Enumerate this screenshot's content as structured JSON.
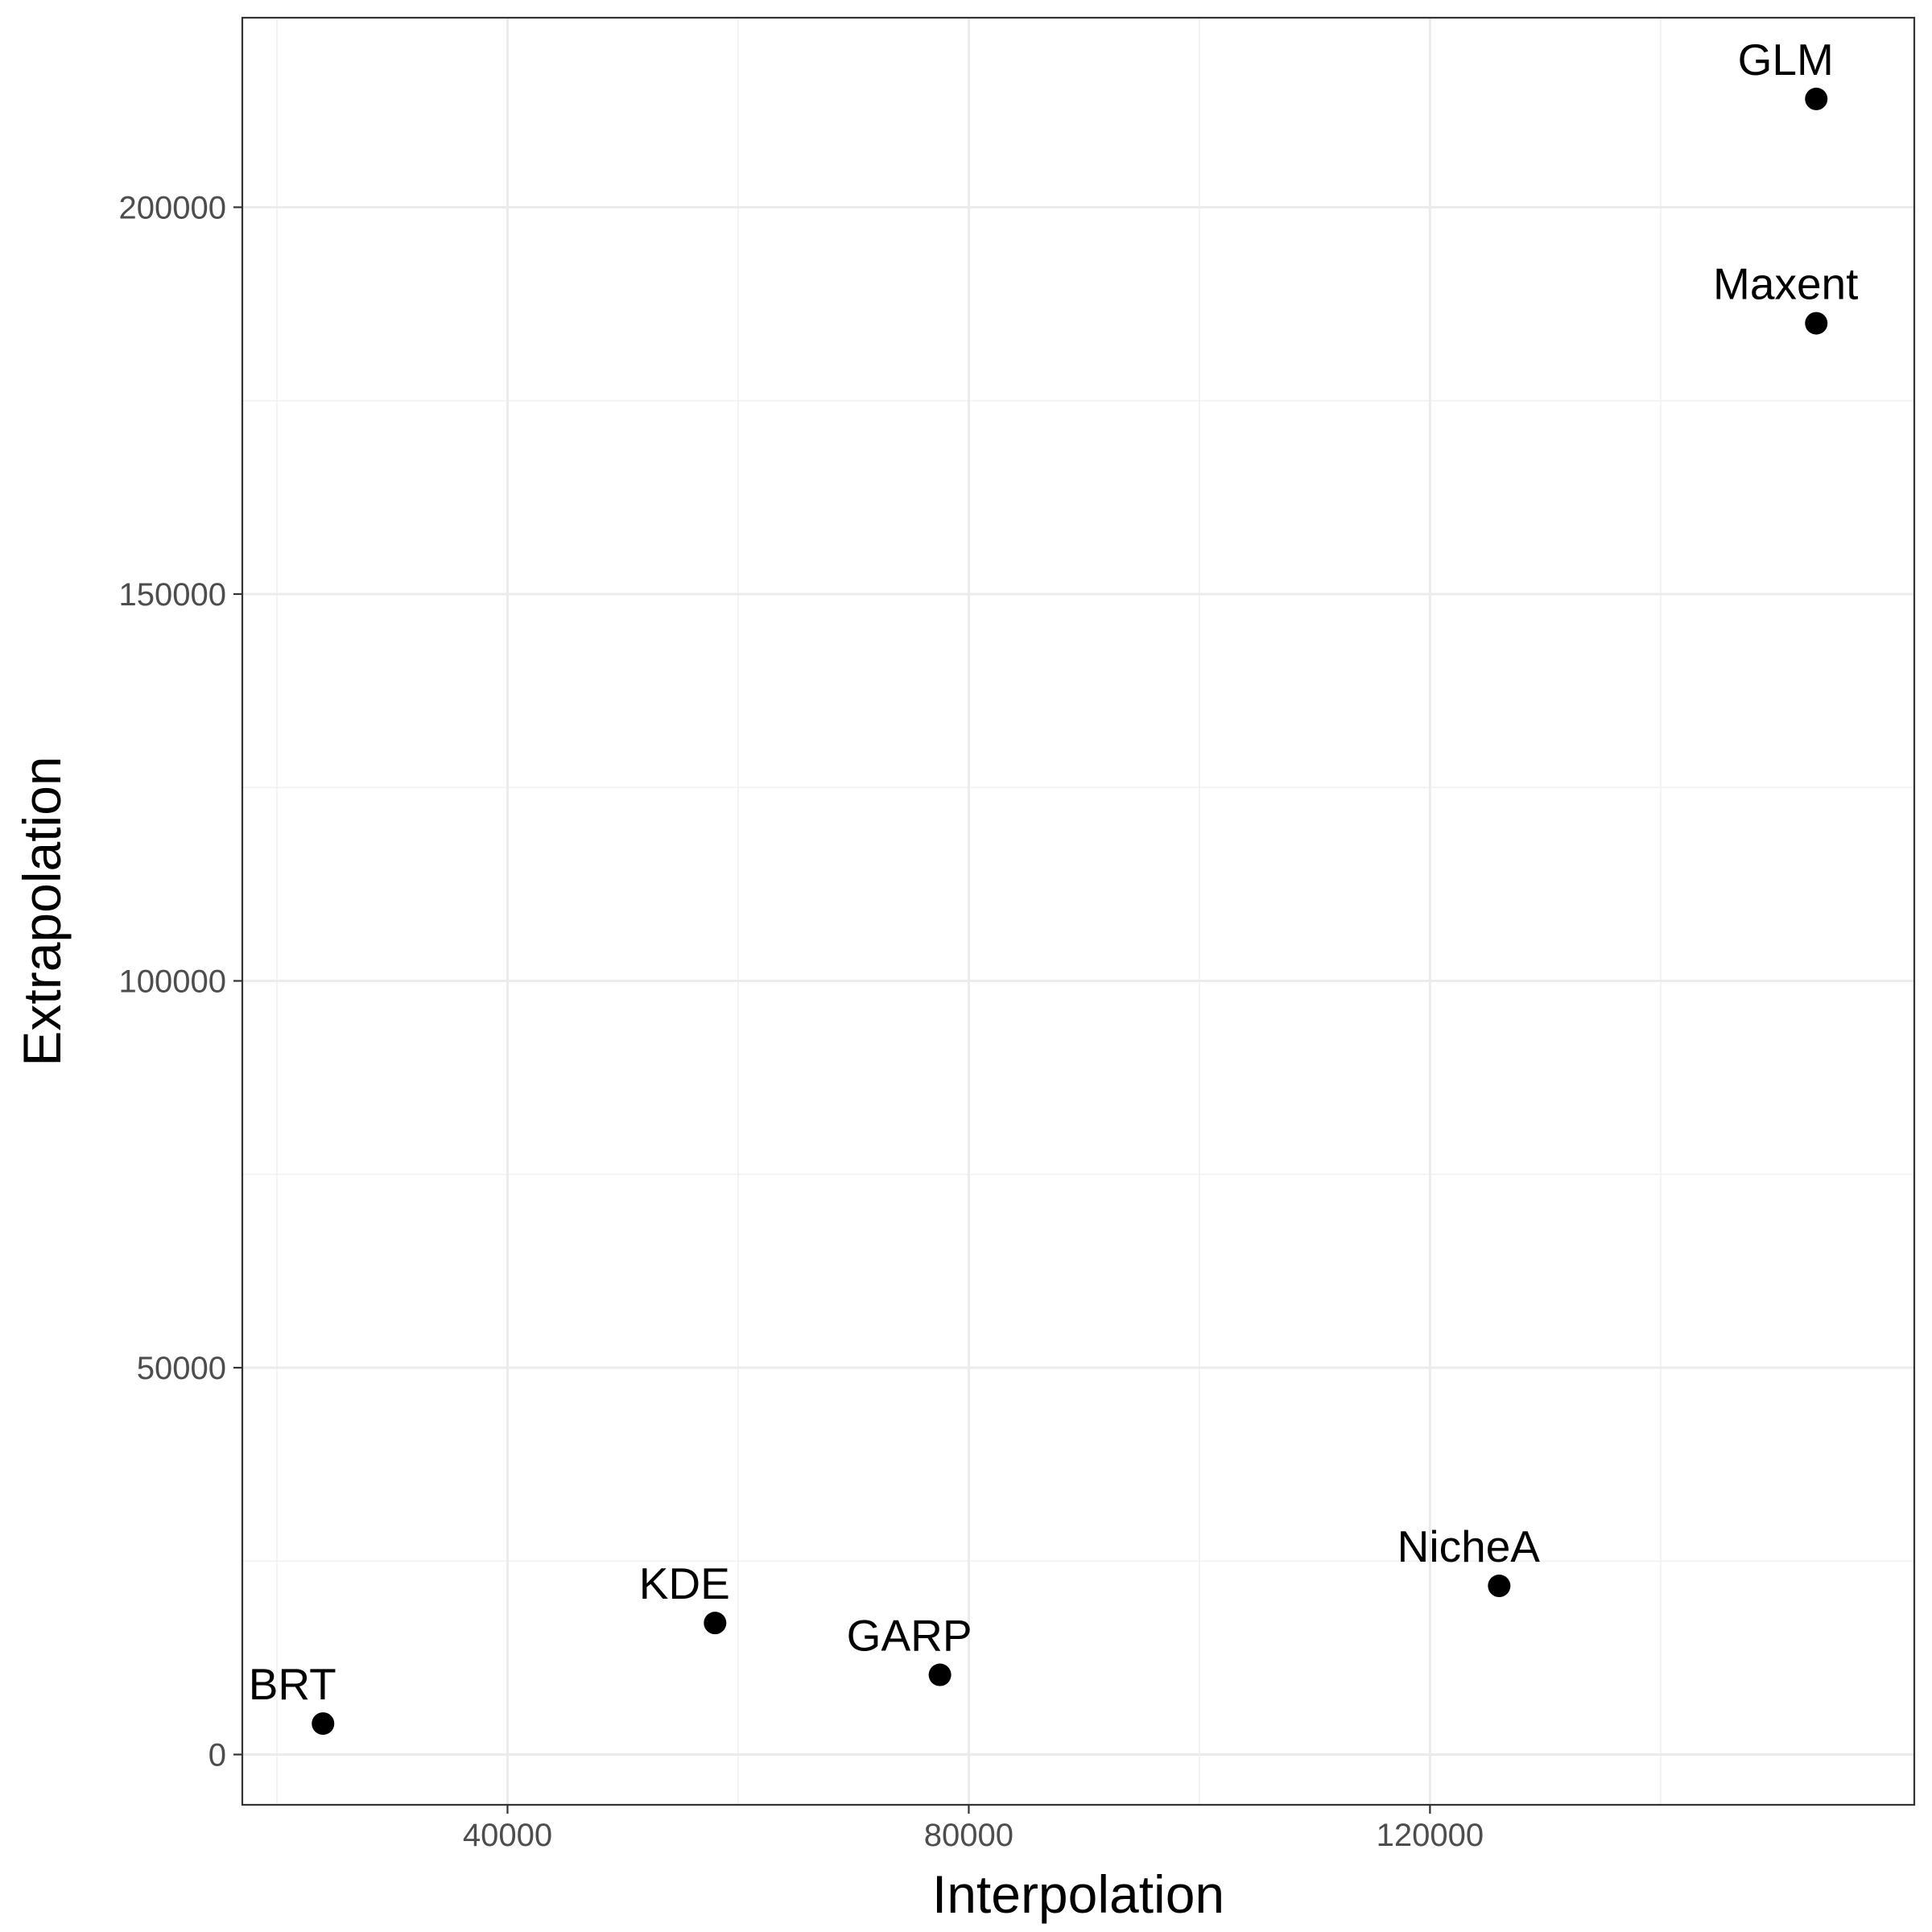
{
  "chart_data": {
    "type": "scatter",
    "xlabel": "Interpolation",
    "ylabel": "Extrapolation",
    "xlim": [
      17000,
      162000
    ],
    "ylim": [
      -6500,
      224500
    ],
    "x_ticks": [
      40000,
      80000,
      120000
    ],
    "x_tick_labels": [
      "40000",
      "80000",
      "120000"
    ],
    "y_ticks": [
      0,
      50000,
      100000,
      150000,
      200000
    ],
    "y_tick_labels": [
      "0",
      "50000",
      "100000",
      "150000",
      "200000"
    ],
    "grid": true,
    "legend": "none",
    "points": [
      {
        "label": "BRT",
        "x": 24000,
        "y": 4000
      },
      {
        "label": "KDE",
        "x": 58000,
        "y": 17000
      },
      {
        "label": "GARP",
        "x": 77500,
        "y": 10300
      },
      {
        "label": "NicheA",
        "x": 126000,
        "y": 21800
      },
      {
        "label": "GLM",
        "x": 153500,
        "y": 214000
      },
      {
        "label": "Maxent",
        "x": 153500,
        "y": 185000
      }
    ]
  }
}
